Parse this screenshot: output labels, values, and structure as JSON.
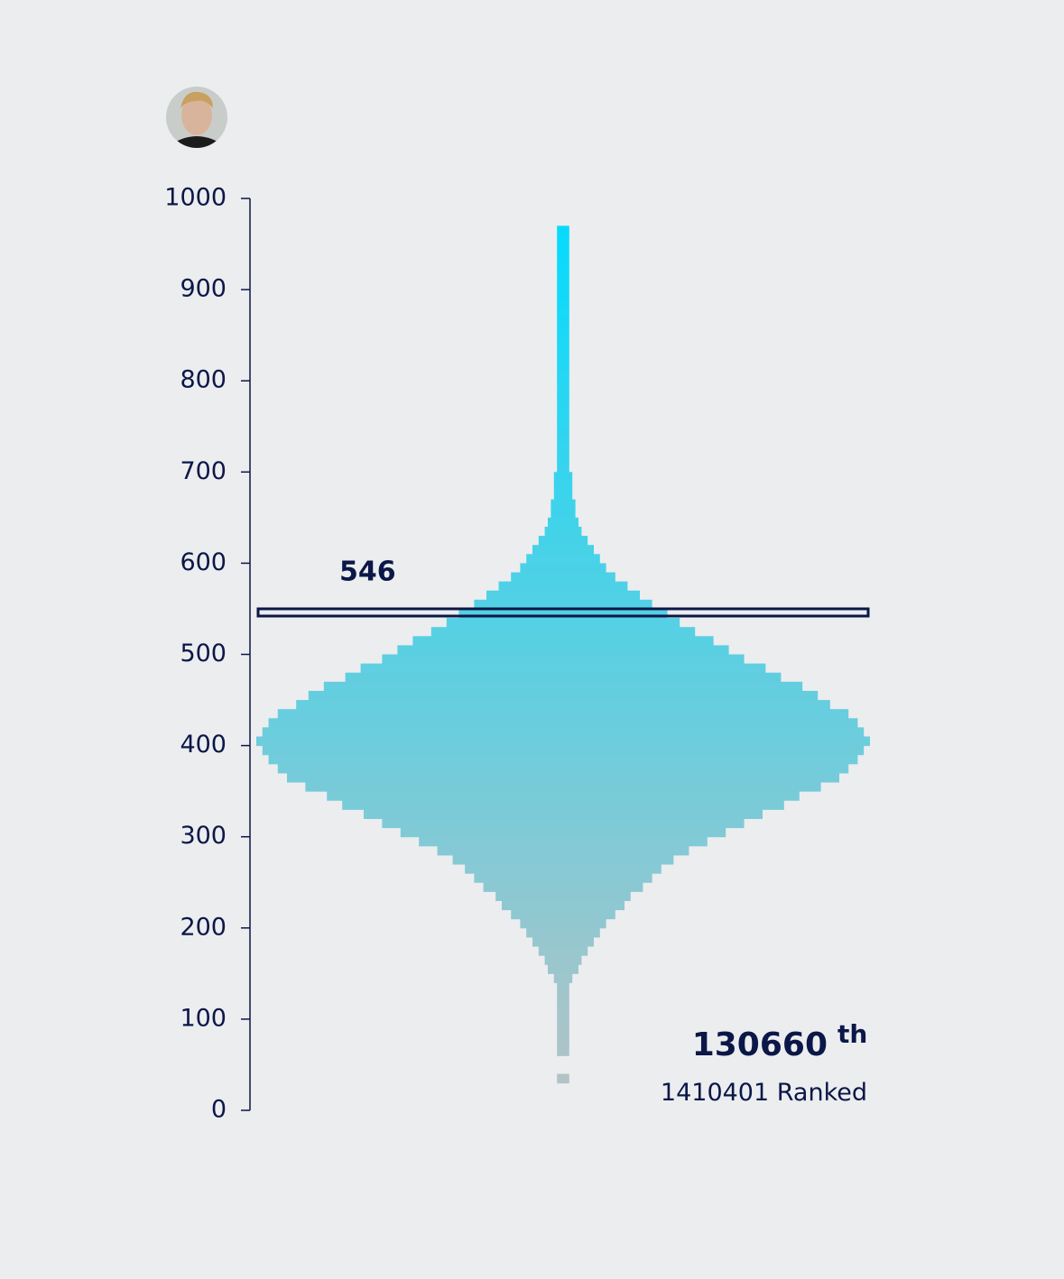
{
  "chart_data": {
    "type": "histogram",
    "bins": [
      30,
      40,
      50,
      60,
      70,
      80,
      90,
      100,
      110,
      120,
      130,
      140,
      150,
      160,
      170,
      180,
      190,
      200,
      210,
      220,
      230,
      240,
      250,
      260,
      270,
      280,
      290,
      300,
      310,
      320,
      330,
      340,
      350,
      360,
      370,
      380,
      390,
      400,
      410,
      420,
      430,
      440,
      450,
      460,
      470,
      480,
      490,
      500,
      510,
      520,
      530,
      540,
      550,
      560,
      570,
      580,
      590,
      600,
      610,
      620,
      630,
      640,
      650,
      660,
      670,
      680,
      690,
      700,
      710,
      720,
      730,
      740,
      750,
      760,
      770,
      780,
      790,
      800,
      810,
      820,
      830,
      840,
      850,
      860,
      870,
      880,
      890,
      900,
      910,
      920,
      930,
      940,
      950,
      960,
      970
    ],
    "values": [
      2,
      0,
      0,
      2,
      2,
      2,
      2,
      2,
      2,
      2,
      2,
      3,
      5,
      6,
      8,
      10,
      12,
      14,
      17,
      20,
      22,
      26,
      29,
      32,
      36,
      41,
      47,
      53,
      59,
      65,
      72,
      77,
      84,
      90,
      93,
      96,
      98,
      100,
      98,
      96,
      93,
      87,
      83,
      78,
      71,
      66,
      59,
      54,
      49,
      43,
      38,
      34,
      29,
      25,
      21,
      17,
      14,
      12,
      10,
      8,
      6,
      5,
      4,
      4,
      3,
      3,
      3,
      2,
      2,
      2,
      2,
      2,
      2,
      2,
      2,
      2,
      2,
      2,
      2,
      2,
      2,
      2,
      2,
      2,
      2,
      2,
      2,
      2,
      2,
      2,
      2,
      2,
      2,
      2
    ],
    "xlim": [
      0,
      100
    ],
    "ylim": [
      0,
      1000
    ],
    "yticks": [
      0,
      100,
      200,
      300,
      400,
      500,
      600,
      700,
      800,
      900,
      1000
    ],
    "color_top": "#00dcff",
    "color_bottom": "#b8c2c4",
    "marker": {
      "value": 546,
      "color": "#0b1747"
    },
    "rank": 130660,
    "rank_suffix": "th",
    "total": 1410401,
    "total_label": "Ranked"
  }
}
